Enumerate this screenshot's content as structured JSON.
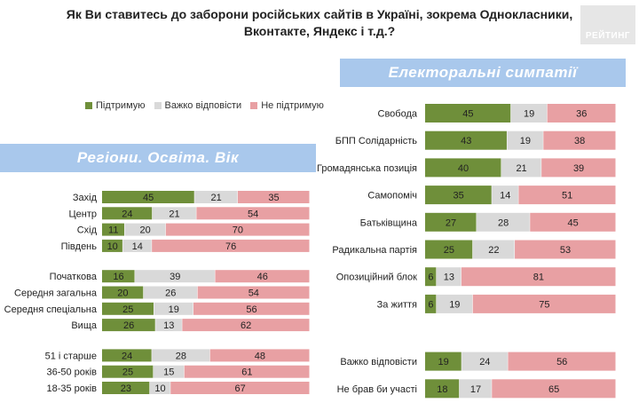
{
  "header": {
    "title_line1": "Як Ви ставитесь до заборони російських сайтів в Україні, зокрема Однокласники,",
    "title_line2": "Вконтакте, Яндекс і т.д.?",
    "logo_text": "РЕЙТИНГ"
  },
  "legend": {
    "items": [
      {
        "label": "Підтримую",
        "color": "#6f8f3a"
      },
      {
        "label": "Важко відповісти",
        "color": "#d9d9d9"
      },
      {
        "label": "Не підтримую",
        "color": "#e8a0a3"
      }
    ]
  },
  "sections": {
    "left_banner": "Регіони. Освіта. Вік",
    "right_banner": "Електоральні симпатії"
  },
  "chart_data": [
    {
      "type": "bar",
      "stacked": true,
      "orientation": "horizontal",
      "series_names": [
        "Підтримую",
        "Важко відповісти",
        "Не підтримую"
      ],
      "colors": [
        "#6f8f3a",
        "#d9d9d9",
        "#e8a0a3"
      ],
      "categories": [
        "Захід",
        "Центр",
        "Схід",
        "Південь",
        "Початкова",
        "Середня загальна",
        "Середня спеціальна",
        "Вища",
        "51 і старше",
        "36-50 років",
        "18-35 років"
      ],
      "values": [
        [
          45,
          21,
          35
        ],
        [
          24,
          21,
          54
        ],
        [
          11,
          20,
          70
        ],
        [
          10,
          14,
          76
        ],
        [
          16,
          39,
          46
        ],
        [
          20,
          26,
          54
        ],
        [
          25,
          19,
          56
        ],
        [
          26,
          13,
          62
        ],
        [
          24,
          28,
          48
        ],
        [
          25,
          15,
          61
        ],
        [
          23,
          10,
          67
        ]
      ],
      "groups": [
        4,
        4,
        3
      ]
    },
    {
      "type": "bar",
      "stacked": true,
      "orientation": "horizontal",
      "series_names": [
        "Підтримую",
        "Важко відповісти",
        "Не підтримую"
      ],
      "colors": [
        "#6f8f3a",
        "#d9d9d9",
        "#e8a0a3"
      ],
      "categories": [
        "Свобода",
        "БПП Солідарність",
        "Громадянська позиція",
        "Самопоміч",
        "Батьківщина",
        "Радикальна партія",
        "Опозиційний блок",
        "За життя",
        "Важко відповісти",
        "Не брав би участі"
      ],
      "values": [
        [
          45,
          19,
          36
        ],
        [
          43,
          19,
          38
        ],
        [
          40,
          21,
          39
        ],
        [
          35,
          14,
          51
        ],
        [
          27,
          28,
          45
        ],
        [
          25,
          22,
          53
        ],
        [
          6,
          13,
          81
        ],
        [
          6,
          19,
          75
        ],
        [
          19,
          24,
          56
        ],
        [
          18,
          17,
          65
        ]
      ],
      "groups": [
        8,
        2
      ]
    }
  ]
}
